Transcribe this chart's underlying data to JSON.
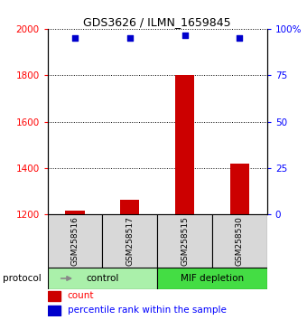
{
  "title": "GDS3626 / ILMN_1659845",
  "samples": [
    "GSM258516",
    "GSM258517",
    "GSM258515",
    "GSM258530"
  ],
  "counts": [
    1215,
    1262,
    1800,
    1420
  ],
  "percentiles": [
    95.0,
    95.2,
    96.5,
    95.3
  ],
  "groups": [
    {
      "label": "control",
      "sample_indices": [
        0,
        1
      ],
      "color": "#aaf0aa"
    },
    {
      "label": "MIF depletion",
      "sample_indices": [
        2,
        3
      ],
      "color": "#44dd44"
    }
  ],
  "ylim_left": [
    1200,
    2000
  ],
  "ylim_right": [
    0,
    100
  ],
  "yticks_left": [
    1200,
    1400,
    1600,
    1800,
    2000
  ],
  "yticks_right": [
    0,
    25,
    50,
    75,
    100
  ],
  "ytick_labels_right": [
    "0",
    "25",
    "50",
    "75",
    "100%"
  ],
  "bar_color": "#cc0000",
  "bar_baseline": 1200,
  "scatter_color": "#0000cc",
  "bg_color": "#d8d8d8",
  "bar_width": 0.35,
  "legend_count_label": "count",
  "legend_pct_label": "percentile rank within the sample",
  "protocol_label": "protocol",
  "title_fontsize": 9
}
